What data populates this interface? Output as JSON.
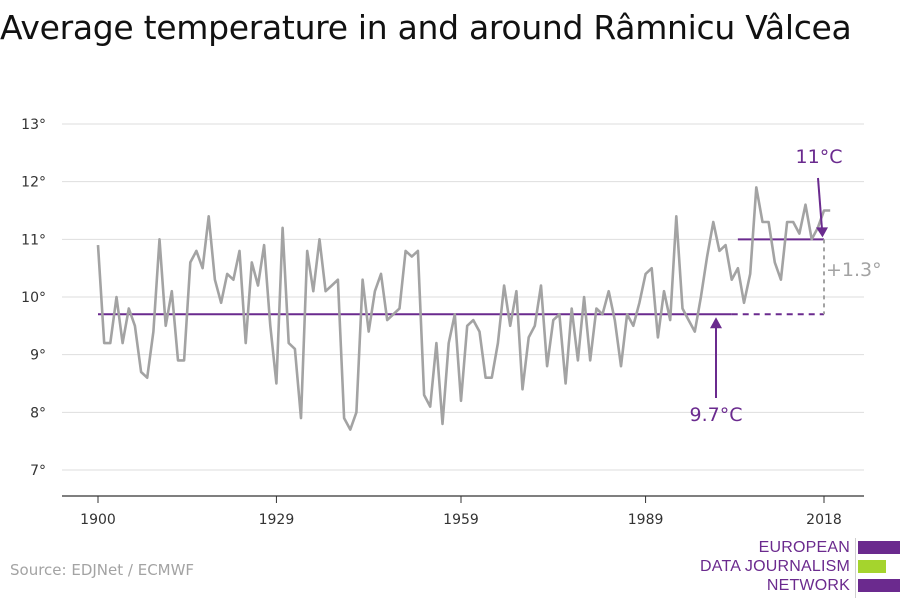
{
  "title": "Average temperature in and around Râmnicu Vâlcea",
  "source": "Source: EDJNet / ECMWF",
  "logo": {
    "lines": [
      "EUROPEAN",
      "DATA JOURNALISM",
      "NETWORK"
    ],
    "colors": {
      "text": "#6b2a8e",
      "bar_top": "#6b2a8e",
      "bar_middle": "#a5d42d",
      "bar_bottom": "#6b2a8e"
    }
  },
  "colors": {
    "series": "#a3a3a3",
    "accent": "#6a2a8e",
    "grid": "#dedede",
    "axis": "#333333",
    "text": "#333333"
  },
  "chart_data": {
    "type": "line",
    "title": "Average temperature in and around Râmnicu Vâlcea",
    "xlabel": "",
    "ylabel": "",
    "xlim": [
      1900,
      2019
    ],
    "ylim": [
      7,
      13
    ],
    "y_ticks": [
      7,
      8,
      9,
      10,
      11,
      12,
      13
    ],
    "y_tick_labels": [
      "7°",
      "8°",
      "9°",
      "10°",
      "11°",
      "12°",
      "13°"
    ],
    "x_ticks": [
      1900,
      1929,
      1959,
      1989,
      2018
    ],
    "x_tick_labels": [
      "1900",
      "1929",
      "1959",
      "1989",
      "2018"
    ],
    "grid": true,
    "series": [
      {
        "x": [
          1900,
          1901,
          1902,
          1903,
          1904,
          1905,
          1906,
          1907,
          1908,
          1909,
          1910,
          1911,
          1912,
          1913,
          1914,
          1915,
          1916,
          1917,
          1918,
          1919,
          1920,
          1921,
          1922,
          1923,
          1924,
          1925,
          1926,
          1927,
          1928,
          1929,
          1930,
          1931,
          1932,
          1933,
          1934,
          1935,
          1936,
          1937,
          1938,
          1939,
          1940,
          1941,
          1942,
          1943,
          1944,
          1945,
          1946,
          1947,
          1948,
          1949,
          1950,
          1951,
          1952,
          1953,
          1954,
          1955,
          1956,
          1957,
          1958,
          1959,
          1960,
          1961,
          1962,
          1963,
          1964,
          1965,
          1966,
          1967,
          1968,
          1969,
          1970,
          1971,
          1972,
          1973,
          1974,
          1975,
          1976,
          1977,
          1978,
          1979,
          1980,
          1981,
          1982,
          1983,
          1984,
          1985,
          1986,
          1987,
          1988,
          1989,
          1990,
          1991,
          1992,
          1993,
          1994,
          1995,
          1996,
          1997,
          1998,
          1999,
          2000,
          2001,
          2002,
          2003,
          2004,
          2005,
          2006,
          2007,
          2008,
          2009,
          2010,
          2011,
          2012,
          2013,
          2014,
          2015,
          2016,
          2017,
          2018,
          2019
        ],
        "values": [
          10.9,
          9.2,
          9.2,
          10.0,
          9.2,
          9.8,
          9.5,
          8.7,
          8.6,
          9.4,
          11.0,
          9.5,
          10.1,
          8.9,
          8.9,
          10.6,
          10.8,
          10.5,
          11.4,
          10.3,
          9.9,
          10.4,
          10.3,
          10.8,
          9.2,
          10.6,
          10.2,
          10.9,
          9.5,
          8.5,
          11.2,
          9.2,
          9.1,
          7.9,
          10.8,
          10.1,
          11.0,
          10.1,
          10.2,
          10.3,
          7.9,
          7.7,
          8.0,
          10.3,
          9.4,
          10.1,
          10.4,
          9.6,
          9.7,
          9.8,
          10.8,
          10.7,
          10.8,
          8.3,
          8.1,
          9.2,
          7.8,
          9.2,
          9.7,
          8.2,
          9.5,
          9.6,
          9.4,
          8.6,
          8.6,
          9.2,
          10.2,
          9.5,
          10.1,
          8.4,
          9.3,
          9.5,
          10.2,
          8.8,
          9.6,
          9.7,
          8.5,
          9.8,
          8.9,
          10.0,
          8.9,
          9.8,
          9.7,
          10.1,
          9.6,
          8.8,
          9.7,
          9.5,
          9.9,
          10.4,
          10.5,
          9.3,
          10.1,
          9.6,
          11.4,
          9.8,
          9.6,
          9.4,
          10.0,
          10.7,
          11.3,
          10.8,
          10.9,
          10.3,
          10.5,
          9.9,
          10.4,
          11.9,
          11.3,
          11.3,
          10.6,
          10.3,
          11.3,
          11.3,
          11.1,
          11.6,
          11.0,
          11.2,
          11.5,
          11.5
        ]
      }
    ],
    "reference_lines": [
      {
        "label": "9.7°C",
        "value": 9.7,
        "x_start": 1900,
        "x_end": 2018
      },
      {
        "label": "11°C",
        "value": 11.0,
        "x_start": 2004,
        "x_end": 2018
      }
    ],
    "difference_label": "+1.3°"
  }
}
